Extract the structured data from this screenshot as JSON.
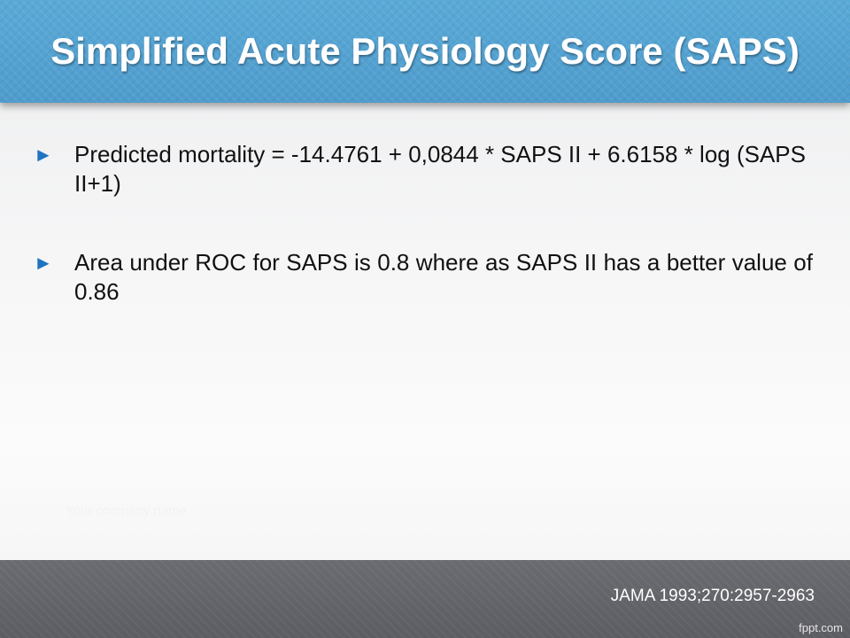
{
  "header": {
    "title": "Simplified Acute Physiology Score (SAPS)"
  },
  "bullets": [
    {
      "marker": "►",
      "text": "Predicted mortality = -14.4761 + 0,0844 * SAPS II + 6.6158 * log (SAPS II+1)"
    },
    {
      "marker": "►",
      "text": "Area under ROC for SAPS is 0.8 where as SAPS II has a better value of 0.86"
    }
  ],
  "company_placeholder": "Your company name",
  "footer": {
    "citation": "JAMA 1993;270:2957-2963",
    "watermark": "fppt.com"
  },
  "colors": {
    "header_blue": "#4e9ccd",
    "bullet_marker_blue": "#1f74c2",
    "footer_gray": "#5f6065"
  }
}
